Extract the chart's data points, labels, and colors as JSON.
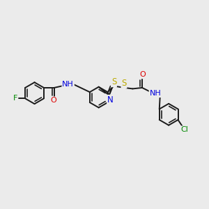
{
  "background_color": "#ebebeb",
  "bond_color": "#1a1a1a",
  "atom_colors": {
    "F": "#008800",
    "O": "#dd0000",
    "N": "#0000dd",
    "S": "#bbaa00",
    "Cl": "#008800",
    "H": "#1a1a1a"
  },
  "figsize": [
    3.0,
    3.0
  ],
  "dpi": 100,
  "lw": 1.4,
  "fs": 7.5
}
